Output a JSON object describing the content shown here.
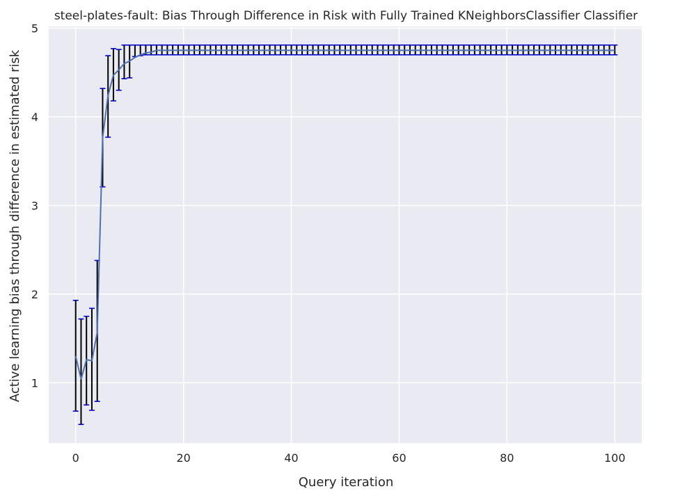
{
  "chart_data": {
    "type": "line",
    "title": "steel-plates-fault: Bias Through Difference in Risk with Fully Trained KNeighborsClassifier Classifier",
    "xlabel": "Query iteration",
    "ylabel": "Active learning bias through difference in estimated risk",
    "xlim": [
      -5,
      105
    ],
    "ylim": [
      0.32,
      5.02
    ],
    "xticks": [
      0,
      20,
      40,
      60,
      80,
      100
    ],
    "yticks": [
      1,
      2,
      3,
      4,
      5
    ],
    "grid": true,
    "background": "#EAEAF2",
    "line_color": "#4C72B0",
    "errorbar_color": "#000000",
    "cap_color": "#0000CC",
    "series": [
      {
        "x": [
          0,
          1,
          2,
          3,
          4,
          5,
          6,
          7,
          8,
          9,
          10,
          11,
          12,
          13,
          14
        ],
        "y": [
          1.3,
          1.04,
          1.26,
          1.25,
          1.57,
          3.77,
          4.24,
          4.47,
          4.53,
          4.6,
          4.63,
          4.67,
          4.7,
          4.72,
          4.73
        ],
        "err_low": [
          0.68,
          0.53,
          0.75,
          0.69,
          0.79,
          3.21,
          3.77,
          4.18,
          4.3,
          4.43,
          4.44,
          4.68,
          4.69,
          4.7,
          4.7
        ],
        "err_high": [
          1.93,
          1.72,
          1.75,
          1.84,
          2.38,
          4.32,
          4.69,
          4.77,
          4.76,
          4.81,
          4.81,
          4.81,
          4.81,
          4.81,
          4.81
        ]
      }
    ],
    "plateau": {
      "from_x": 15,
      "to_x": 100,
      "y": 4.75,
      "err_low": 4.7,
      "err_high": 4.81
    }
  }
}
